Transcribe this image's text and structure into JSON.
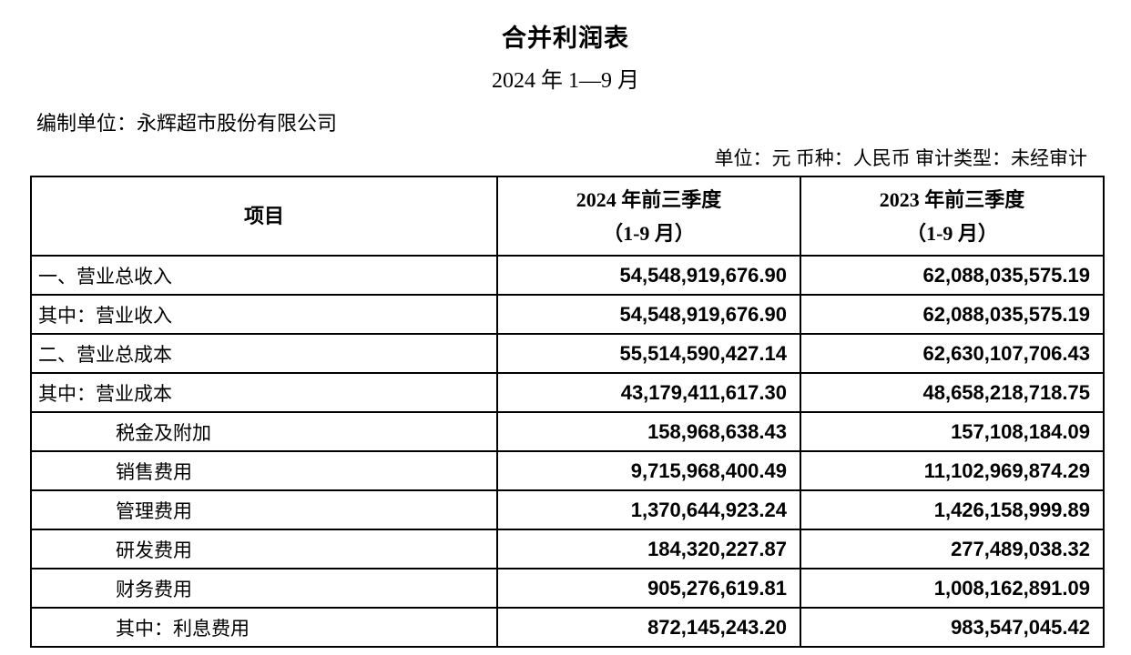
{
  "header": {
    "title": "合并利润表",
    "subtitle": "2024 年 1—9 月",
    "prepared_by": "编制单位：永辉超市股份有限公司",
    "unit_info": "单位：元 币种：人民币 审计类型：未经审计"
  },
  "table": {
    "columns": {
      "item": "项目",
      "col_2024": {
        "line1": "2024 年前三季度",
        "line2": "（1-9 月）"
      },
      "col_2023": {
        "line1": "2023 年前三季度",
        "line2": "（1-9 月）"
      }
    },
    "rows": [
      {
        "item": "一、营业总收入",
        "indent": false,
        "v2024": "54,548,919,676.90",
        "v2023": "62,088,035,575.19"
      },
      {
        "item": "其中：营业收入",
        "indent": false,
        "v2024": "54,548,919,676.90",
        "v2023": "62,088,035,575.19"
      },
      {
        "item": "二、营业总成本",
        "indent": false,
        "v2024": "55,514,590,427.14",
        "v2023": "62,630,107,706.43"
      },
      {
        "item": "其中：营业成本",
        "indent": false,
        "v2024": "43,179,411,617.30",
        "v2023": "48,658,218,718.75"
      },
      {
        "item": "税金及附加",
        "indent": true,
        "v2024": "158,968,638.43",
        "v2023": "157,108,184.09"
      },
      {
        "item": "销售费用",
        "indent": true,
        "v2024": "9,715,968,400.49",
        "v2023": "11,102,969,874.29"
      },
      {
        "item": "管理费用",
        "indent": true,
        "v2024": "1,370,644,923.24",
        "v2023": "1,426,158,999.89"
      },
      {
        "item": "研发费用",
        "indent": true,
        "v2024": "184,320,227.87",
        "v2023": "277,489,038.32"
      },
      {
        "item": "财务费用",
        "indent": true,
        "v2024": "905,276,619.81",
        "v2023": "1,008,162,891.09"
      },
      {
        "item": "其中：利息费用",
        "indent": true,
        "v2024": "872,145,243.20",
        "v2023": "983,547,045.42"
      }
    ]
  },
  "colors": {
    "text": "#000000",
    "background": "#ffffff",
    "border": "#000000"
  }
}
